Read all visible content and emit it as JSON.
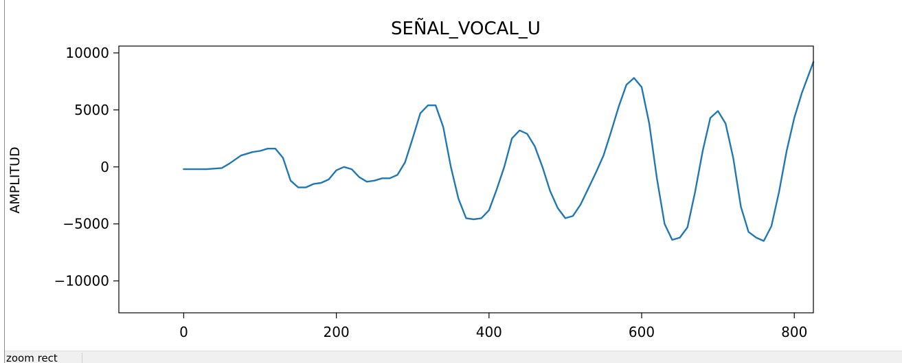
{
  "statusbar": {
    "message": "zoom rect"
  },
  "chart_data": {
    "type": "line",
    "title": "SEÑAL_VOCAL_U",
    "xlabel": "",
    "ylabel": "AMPLITUD",
    "xlim": [
      -85,
      825
    ],
    "ylim": [
      -12800,
      10600
    ],
    "xticks": [
      0,
      200,
      400,
      600,
      800
    ],
    "yticks": [
      -10000,
      -5000,
      0,
      5000,
      10000
    ],
    "xtick_labels": [
      "0",
      "200",
      "400",
      "600",
      "800"
    ],
    "ytick_labels": [
      "−10000",
      "−5000",
      "0",
      "5000",
      "10000"
    ],
    "grid": false,
    "line_color": "#1f77b4",
    "series": [
      {
        "x": [
          0,
          10,
          30,
          50,
          60,
          75,
          90,
          100,
          110,
          120,
          130,
          140,
          150,
          160,
          170,
          180,
          190,
          200,
          210,
          220,
          230,
          240,
          250,
          260,
          270,
          280,
          290,
          300,
          310,
          320,
          330,
          340,
          350,
          360,
          370,
          380,
          390,
          400,
          410,
          420,
          430,
          440,
          450,
          460,
          470,
          480,
          490,
          500,
          510,
          520,
          530,
          540,
          550,
          560,
          570,
          580,
          590,
          600,
          610,
          620,
          630,
          640,
          650,
          660,
          670,
          680,
          690,
          700,
          710,
          720,
          730,
          740,
          750,
          760,
          770,
          780,
          790,
          800,
          810,
          825
        ],
        "values": [
          -200,
          -200,
          -200,
          -100,
          300,
          1000,
          1300,
          1400,
          1600,
          1600,
          800,
          -1200,
          -1800,
          -1800,
          -1500,
          -1400,
          -1100,
          -300,
          0,
          -200,
          -900,
          -1300,
          -1200,
          -1000,
          -1000,
          -700,
          400,
          2500,
          4700,
          5400,
          5400,
          3500,
          0,
          -2800,
          -4500,
          -4600,
          -4500,
          -3800,
          -2000,
          0,
          2500,
          3200,
          2900,
          1800,
          0,
          -2100,
          -3600,
          -4500,
          -4300,
          -3300,
          -1900,
          -500,
          1000,
          3100,
          5300,
          7200,
          7800,
          7000,
          3800,
          -1000,
          -5000,
          -6400,
          -6200,
          -5300,
          -2200,
          1400,
          4300,
          4900,
          3800,
          800,
          -3500,
          -5700,
          -6200,
          -6500,
          -5200,
          -2200,
          1400,
          4300,
          6500,
          9200
        ]
      }
    ]
  }
}
